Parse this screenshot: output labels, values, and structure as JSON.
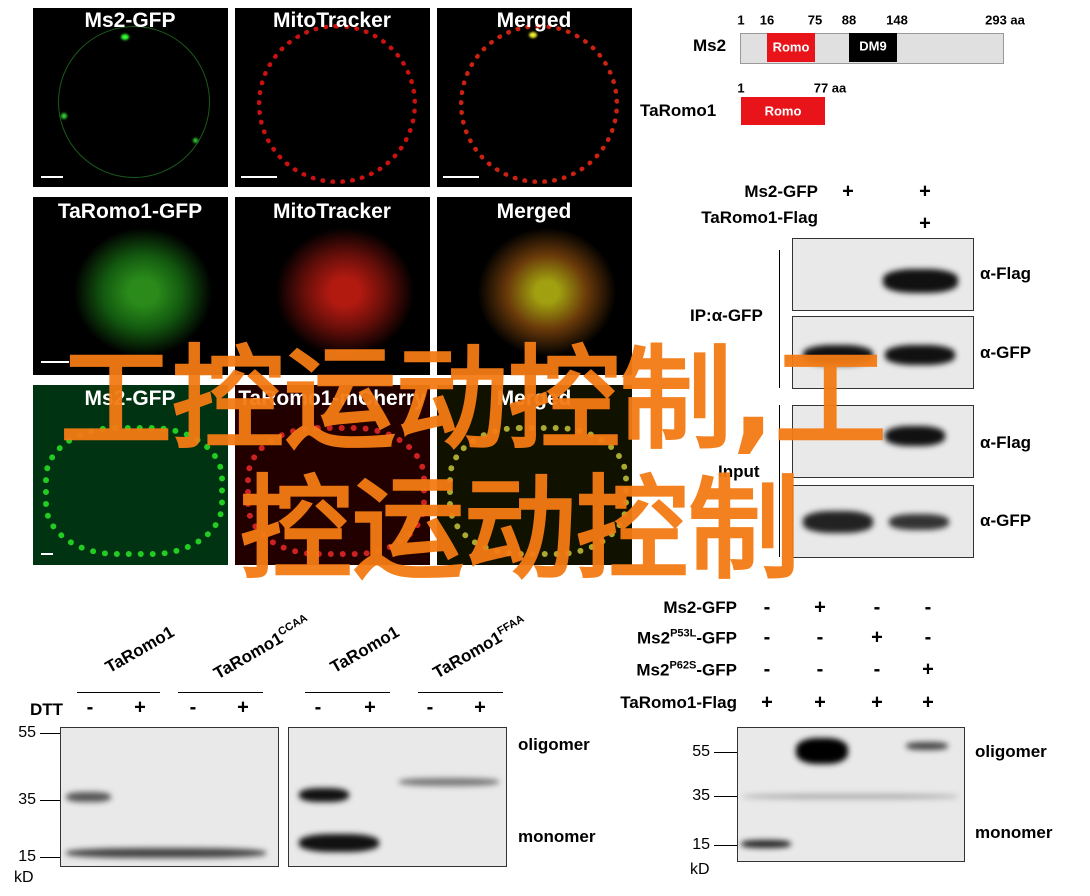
{
  "microscopy": {
    "rows": [
      [
        "Ms2-GFP",
        "MitoTracker",
        "Merged"
      ],
      [
        "TaRomo1-GFP",
        "MitoTracker",
        "Merged"
      ],
      [
        "Ms2-GFP",
        "TaRomo1-mCherry",
        "Merged"
      ]
    ]
  },
  "domains": {
    "ms2": {
      "name": "Ms2",
      "positions": [
        "1",
        "16",
        "75",
        "88",
        "148",
        "293 aa"
      ],
      "domains": [
        "Romo",
        "DM9"
      ]
    },
    "taromo1": {
      "name": "TaRomo1",
      "positions": [
        "1",
        "77 aa"
      ],
      "domains": [
        "Romo"
      ]
    }
  },
  "coip": {
    "rows": [
      {
        "label": "Ms2-GFP",
        "signs": [
          "+",
          "+"
        ]
      },
      {
        "label": "TaRomo1-Flag",
        "signs": [
          "+"
        ]
      }
    ],
    "groups": [
      "IP:α-GFP",
      "Input"
    ],
    "antibodies": [
      "α-Flag",
      "α-GFP",
      "α-Flag",
      "α-GFP"
    ]
  },
  "dtt_blot": {
    "lanes": [
      {
        "base": "TaRomo1"
      },
      {
        "base": "TaRomo1",
        "sup": "CCAA"
      },
      {
        "base": "TaRomo1"
      },
      {
        "base": "TaRomo1",
        "sup": "FFAA"
      }
    ],
    "row_label": "DTT",
    "signs": [
      "-",
      "+",
      "-",
      "+",
      "-",
      "+",
      "-",
      "+"
    ],
    "markers": [
      "55",
      "35",
      "15"
    ],
    "unit": "kD",
    "bands": [
      "oligomer",
      "monomer"
    ]
  },
  "mutant_blot": {
    "rows": [
      {
        "base": "Ms2-GFP",
        "signs": [
          "-",
          "+",
          "-",
          "-"
        ]
      },
      {
        "base": "Ms2",
        "sup": "P53L",
        "suffix": "-GFP",
        "signs": [
          "-",
          "-",
          "+",
          "-"
        ]
      },
      {
        "base": "Ms2",
        "sup": "P62S",
        "suffix": "-GFP",
        "signs": [
          "-",
          "-",
          "-",
          "+"
        ]
      },
      {
        "base": "TaRomo1-Flag",
        "signs": [
          "+",
          "+",
          "+",
          "+"
        ]
      }
    ],
    "markers": [
      "55",
      "35",
      "15"
    ],
    "unit": "kD",
    "bands": [
      "oligomer",
      "monomer"
    ]
  },
  "watermark": [
    "工控运动控制,工",
    "控运动控制"
  ]
}
